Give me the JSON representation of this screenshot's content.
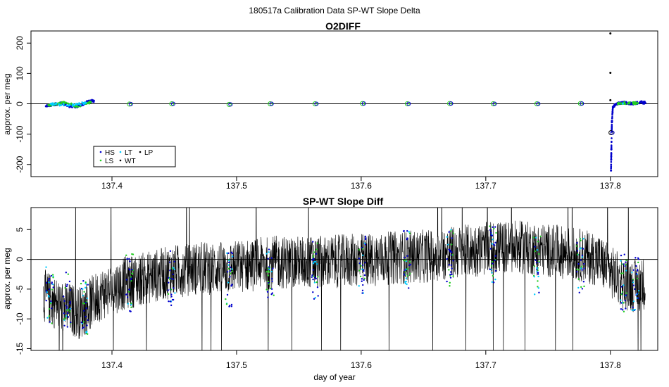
{
  "figure_title": "180517a   Calibration Data SP-WT Slope Delta",
  "chart_data": [
    {
      "type": "scatter",
      "title": "O2DIFF",
      "xlabel": "",
      "ylabel": "approx. per meg",
      "xlim": [
        137.335,
        137.838
      ],
      "ylim": [
        -240,
        240
      ],
      "x_ticks": [
        137.4,
        137.5,
        137.6,
        137.7,
        137.8
      ],
      "x_tick_labels": [
        "137.4",
        "137.5",
        "137.6",
        "137.7",
        "137.8"
      ],
      "y_ticks": [
        -200,
        -100,
        0,
        100,
        200
      ],
      "y_tick_labels": [
        "-200",
        "-100",
        "0",
        "100",
        "200"
      ],
      "grid": false,
      "hline": 0,
      "legend": {
        "position": "bottom-left",
        "entries": [
          {
            "label": "HS",
            "color": "#0000cc"
          },
          {
            "label": "LT",
            "color": "#00ccff"
          },
          {
            "label": "LP",
            "color": "#000000"
          },
          {
            "label": "LS",
            "color": "#22cc22"
          },
          {
            "label": "WT",
            "color": "#000000"
          }
        ]
      },
      "series": [
        {
          "name": "HS",
          "color": "#0000cc",
          "marker": "dot",
          "x": [
            137.347,
            137.352,
            137.358,
            137.364,
            137.37,
            137.376,
            137.38,
            137.3855,
            137.8005,
            137.8008,
            137.8012,
            137.802,
            137.806,
            137.812,
            137.818,
            137.824,
            137.828
          ],
          "y": [
            -8,
            -4,
            2,
            -6,
            -10,
            -4,
            6,
            10,
            -220,
            -150,
            -60,
            -10,
            2,
            4,
            0,
            6,
            3
          ]
        },
        {
          "name": "LS",
          "color": "#22cc22",
          "marker": "dot",
          "x": [
            137.349,
            137.355,
            137.362,
            137.372,
            137.383,
            137.806,
            137.815,
            137.822
          ],
          "y": [
            -4,
            -2,
            4,
            -8,
            6,
            0,
            4,
            2
          ]
        },
        {
          "name": "LT",
          "color": "#00ccff",
          "marker": "dot",
          "x": [
            137.351,
            137.366,
            137.379,
            137.81
          ],
          "y": [
            0,
            -5,
            3,
            1
          ]
        },
        {
          "name": "WT",
          "color": "#000000",
          "marker": "dot",
          "x": [
            137.8,
            137.8,
            137.8
          ],
          "y": [
            232,
            102,
            12
          ]
        },
        {
          "name": "cal",
          "color": "#22cc22",
          "marker": "circle",
          "x": [
            137.414,
            137.448,
            137.494,
            137.527,
            137.563,
            137.601,
            137.637,
            137.671,
            137.706,
            137.741,
            137.776,
            137.8005
          ],
          "y": [
            -1,
            0,
            -2,
            0,
            0,
            1,
            0,
            1,
            0,
            0,
            1,
            -95
          ]
        }
      ]
    },
    {
      "type": "line",
      "title": "SP-WT Slope Diff",
      "xlabel": "day of year",
      "ylabel": "approx. per meg",
      "xlim": [
        137.335,
        137.838
      ],
      "ylim": [
        -15.3,
        8.7
      ],
      "x_ticks": [
        137.4,
        137.5,
        137.6,
        137.7,
        137.8
      ],
      "x_tick_labels": [
        "137.4",
        "137.5",
        "137.6",
        "137.7",
        "137.8"
      ],
      "y_ticks": [
        -15,
        -10,
        -5,
        0,
        5
      ],
      "y_tick_labels": [
        "-15",
        "-10",
        "-5",
        "0",
        "5"
      ],
      "grid": false,
      "hline": 0,
      "series": [
        {
          "name": "diff",
          "color": "#000000",
          "x": [
            137.345,
            137.36,
            137.375,
            137.39,
            137.41,
            137.43,
            137.45,
            137.47,
            137.49,
            137.51,
            137.53,
            137.55,
            137.57,
            137.59,
            137.61,
            137.63,
            137.65,
            137.67,
            137.69,
            137.71,
            137.73,
            137.75,
            137.77,
            137.79,
            137.8,
            137.81,
            137.82,
            137.828
          ],
          "y": [
            -6,
            -8,
            -9,
            -6,
            -4,
            -3,
            -2,
            -1.5,
            -1.5,
            -1,
            -0.5,
            -0.5,
            -0.5,
            -0.2,
            0,
            0.3,
            0.5,
            1,
            1.5,
            2,
            2,
            1.5,
            1,
            0,
            -2,
            -4,
            -4.5,
            -4
          ]
        },
        {
          "name": "cal_points",
          "color": "#0000cc",
          "x": [
            137.35,
            137.364,
            137.378,
            137.414,
            137.448,
            137.494,
            137.527,
            137.563,
            137.601,
            137.637,
            137.671,
            137.706,
            137.741,
            137.776,
            137.81,
            137.82
          ],
          "y": [
            -6,
            -7,
            -8,
            -4,
            -3,
            -3,
            -2,
            -2,
            -1,
            0,
            0.5,
            1,
            -1,
            -1,
            -4,
            -4
          ]
        }
      ]
    }
  ]
}
